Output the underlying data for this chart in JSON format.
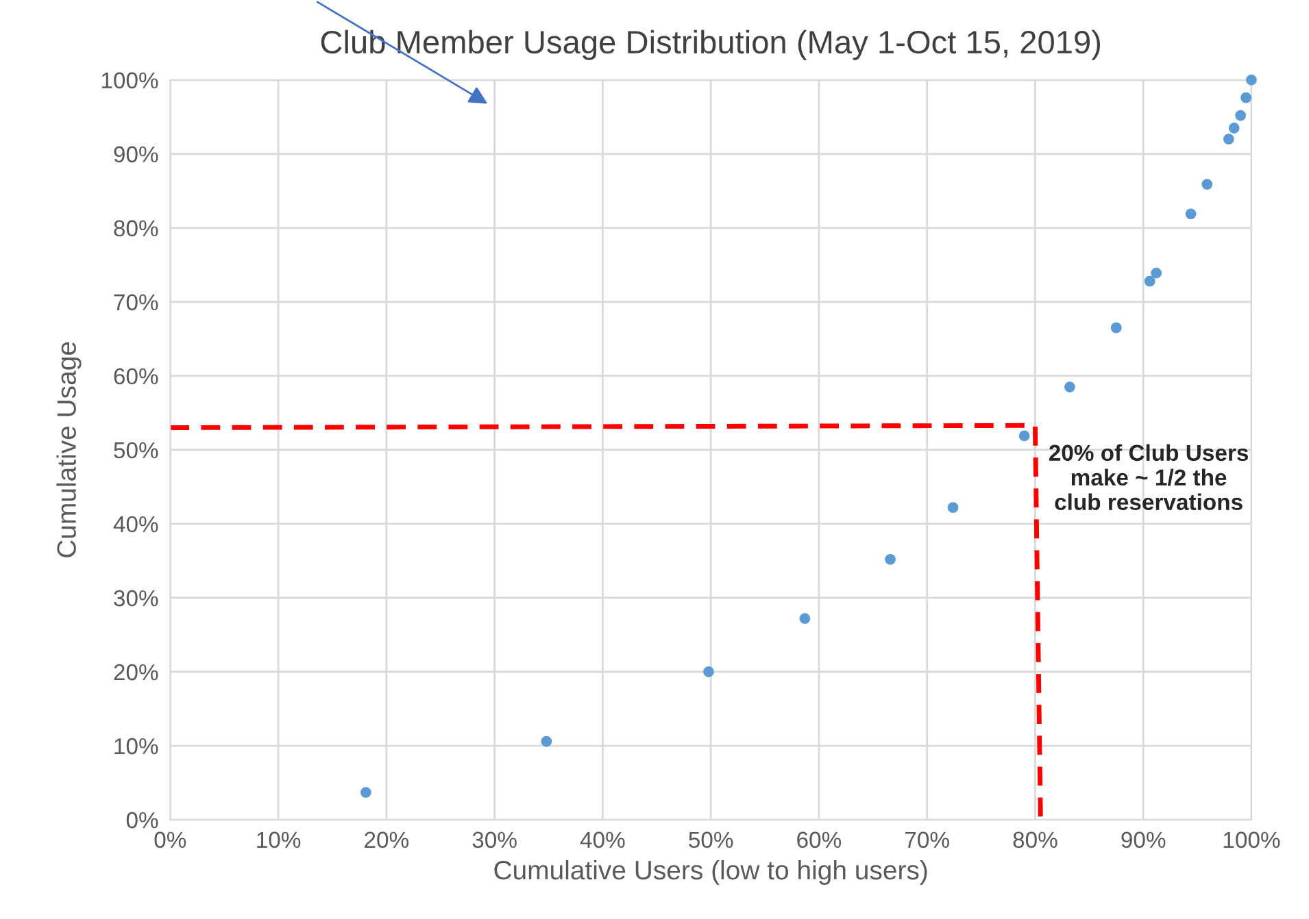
{
  "chart_data": {
    "type": "scatter",
    "title": "Club Member Usage Distribution (May 1-Oct 15, 2019)",
    "xlabel": "Cumulative Users (low to high users)",
    "ylabel": "Cumulative Usage",
    "series": [
      {
        "color": "#5b9bd5",
        "marker": "circle",
        "x": [
          18.1,
          34.8,
          49.8,
          58.7,
          66.6,
          72.4,
          79.0,
          83.2,
          87.5,
          90.6,
          91.2,
          94.4,
          95.9,
          97.9,
          98.4,
          99.0,
          99.5,
          100
        ],
        "values": [
          3.7,
          10.6,
          20.0,
          27.2,
          35.2,
          42.2,
          51.9,
          58.5,
          66.5,
          72.8,
          73.9,
          81.9,
          85.9,
          92.0,
          93.5,
          95.2,
          97.6,
          100
        ]
      },
      {
        "type": "line",
        "color": "#ff0000",
        "line_style": "dashed",
        "x": [
          0,
          80,
          80.5
        ],
        "values": [
          53,
          53.3,
          0
        ]
      }
    ],
    "annotations": [
      "20% of Club Users\nmake ~ 1/2 the\nclub reservations"
    ],
    "xlim": [
      0,
      100
    ],
    "ylim": [
      0,
      100
    ],
    "xticks": [
      {
        "value": 0,
        "label": "0%"
      },
      {
        "value": 10,
        "label": "10%"
      },
      {
        "value": 20,
        "label": "20%"
      },
      {
        "value": 30,
        "label": "30%"
      },
      {
        "value": 40,
        "label": "40%"
      },
      {
        "value": 50,
        "label": "50%"
      },
      {
        "value": 60,
        "label": "60%"
      },
      {
        "value": 70,
        "label": "70%"
      },
      {
        "value": 80,
        "label": "80%"
      },
      {
        "value": 90,
        "label": "90%"
      },
      {
        "value": 100,
        "label": "100%"
      }
    ],
    "yticks": [
      {
        "value": 0,
        "label": "0%"
      },
      {
        "value": 10,
        "label": "10%"
      },
      {
        "value": 20,
        "label": "20%"
      },
      {
        "value": 30,
        "label": "30%"
      },
      {
        "value": 40,
        "label": "40%"
      },
      {
        "value": 50,
        "label": "50%"
      },
      {
        "value": 60,
        "label": "60%"
      },
      {
        "value": 70,
        "label": "70%"
      },
      {
        "value": 80,
        "label": "80%"
      },
      {
        "value": 90,
        "label": "90%"
      },
      {
        "value": 100,
        "label": "100%"
      }
    ],
    "grid": true,
    "legend": false
  }
}
